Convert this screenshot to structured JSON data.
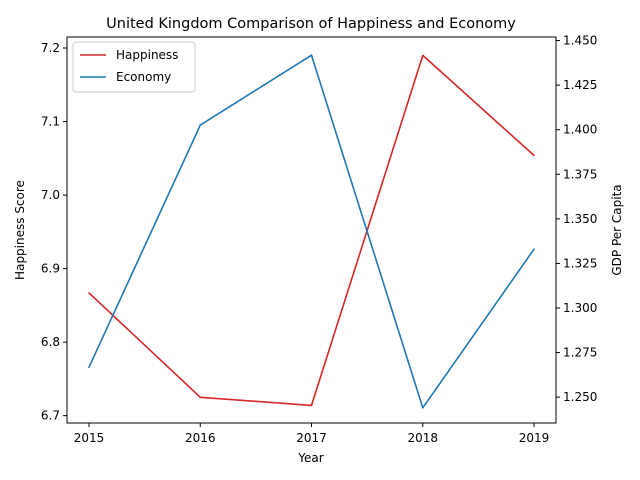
{
  "chart_data": {
    "type": "line",
    "title": "United Kingdom Comparison of Happiness and Economy",
    "xlabel": "Year",
    "ylabel_left": "Happiness Score",
    "ylabel_right": "GDP Per Capita",
    "x": [
      "2015",
      "2016",
      "2017",
      "2018",
      "2019"
    ],
    "left_ylim": [
      6.69,
      7.215
    ],
    "right_ylim": [
      1.2355,
      1.452
    ],
    "left_ticks": [
      "6.7",
      "6.8",
      "6.9",
      "7.0",
      "7.1",
      "7.2"
    ],
    "right_ticks": [
      "1.250",
      "1.275",
      "1.300",
      "1.325",
      "1.350",
      "1.375",
      "1.400",
      "1.425",
      "1.450"
    ],
    "series": [
      {
        "name": "Happiness",
        "axis": "left",
        "color": "#d62728",
        "values": [
          6.867,
          6.725,
          6.714,
          7.19,
          7.054
        ]
      },
      {
        "name": "Economy",
        "axis": "right",
        "color": "#1f77b4",
        "values": [
          1.2668,
          1.4026,
          1.4418,
          1.244,
          1.333
        ]
      }
    ],
    "grid": false,
    "legend": "top-left"
  }
}
